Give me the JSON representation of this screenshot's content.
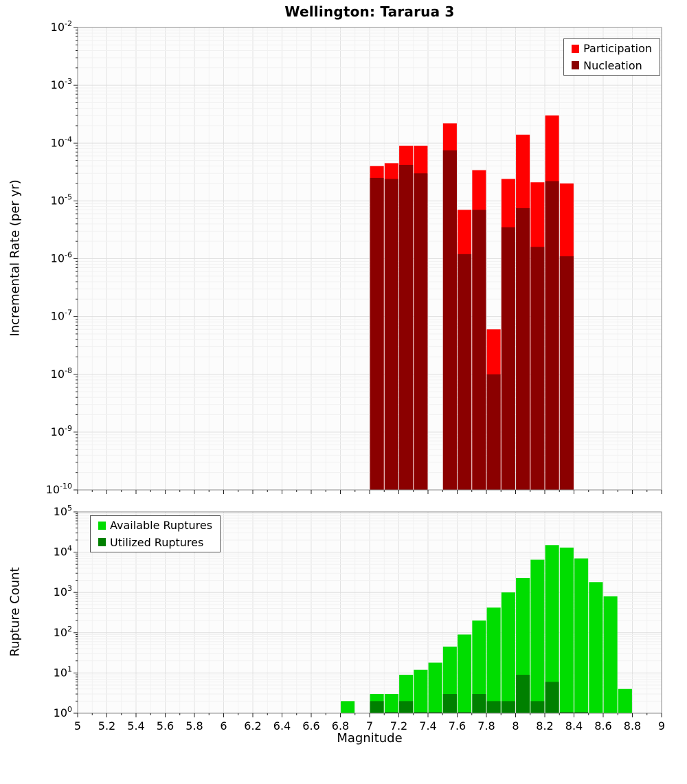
{
  "page": {
    "background": "#ffffff"
  },
  "chart_data": [
    {
      "type": "bar",
      "name": "incremental-rate",
      "title": "Wellington: Tararua 3",
      "xlabel": "Magnitude",
      "ylabel": "Incremental Rate (per yr)",
      "yscale": "log",
      "xlim": [
        5,
        9
      ],
      "ylim": [
        1e-10,
        0.01
      ],
      "bin_width": 0.1,
      "grid": true,
      "legend_position": "top-right",
      "categories": [
        7.0,
        7.1,
        7.2,
        7.3,
        7.4,
        7.5,
        7.6,
        7.7,
        7.8,
        7.9,
        8.0,
        8.1,
        8.2,
        8.3
      ],
      "series": [
        {
          "name": "Participation",
          "color": "#ff0000",
          "values": [
            4e-05,
            4.5e-05,
            9e-05,
            9e-05,
            null,
            0.00022,
            7e-06,
            3.4e-05,
            6e-08,
            2.4e-05,
            0.00014,
            2.1e-05,
            0.0003,
            2e-05
          ]
        },
        {
          "name": "Nucleation",
          "color": "#8b0000",
          "values": [
            2.5e-05,
            2.4e-05,
            4.2e-05,
            3e-05,
            null,
            7.5e-05,
            1.2e-06,
            7e-06,
            1e-08,
            3.5e-06,
            7.5e-06,
            1.6e-06,
            2.2e-05,
            1.1e-06
          ]
        }
      ],
      "x_ticks": [
        5,
        5.2,
        5.4,
        5.6,
        5.8,
        6,
        6.2,
        6.4,
        6.6,
        6.8,
        7,
        7.2,
        7.4,
        7.6,
        7.8,
        8,
        8.2,
        8.4,
        8.6,
        8.8,
        9
      ],
      "y_tick_exponents": [
        -2,
        -3,
        -4,
        -5,
        -6,
        -7,
        -8,
        -9,
        -10
      ]
    },
    {
      "type": "bar",
      "name": "rupture-count",
      "title": "",
      "xlabel": "Magnitude",
      "ylabel": "Rupture Count",
      "yscale": "log",
      "xlim": [
        5,
        9
      ],
      "ylim": [
        1,
        100000.0
      ],
      "bin_width": 0.1,
      "grid": true,
      "legend_position": "top-left",
      "categories": [
        6.8,
        6.9,
        7.0,
        7.1,
        7.2,
        7.3,
        7.4,
        7.5,
        7.6,
        7.7,
        7.8,
        7.9,
        8.0,
        8.1,
        8.2,
        8.3,
        8.4,
        8.5,
        8.6,
        8.7
      ],
      "series": [
        {
          "name": "Available Ruptures",
          "color": "#00dd00",
          "values": [
            2,
            null,
            3,
            3,
            9,
            12,
            18,
            45,
            90,
            200,
            420,
            1000,
            2300,
            6500,
            15000,
            13000,
            7000,
            1800,
            800,
            4
          ]
        },
        {
          "name": "Utilized Ruptures",
          "color": "#008000",
          "values": [
            null,
            null,
            2,
            1,
            2,
            1,
            1,
            3,
            1,
            3,
            2,
            2,
            9,
            2,
            6,
            1,
            1,
            null,
            null,
            null
          ]
        }
      ],
      "x_ticks": [
        5,
        5.2,
        5.4,
        5.6,
        5.8,
        6,
        6.2,
        6.4,
        6.6,
        6.8,
        7,
        7.2,
        7.4,
        7.6,
        7.8,
        8,
        8.2,
        8.4,
        8.6,
        8.8,
        9
      ],
      "y_tick_exponents": [
        0,
        1,
        2,
        3,
        4,
        5
      ]
    }
  ]
}
